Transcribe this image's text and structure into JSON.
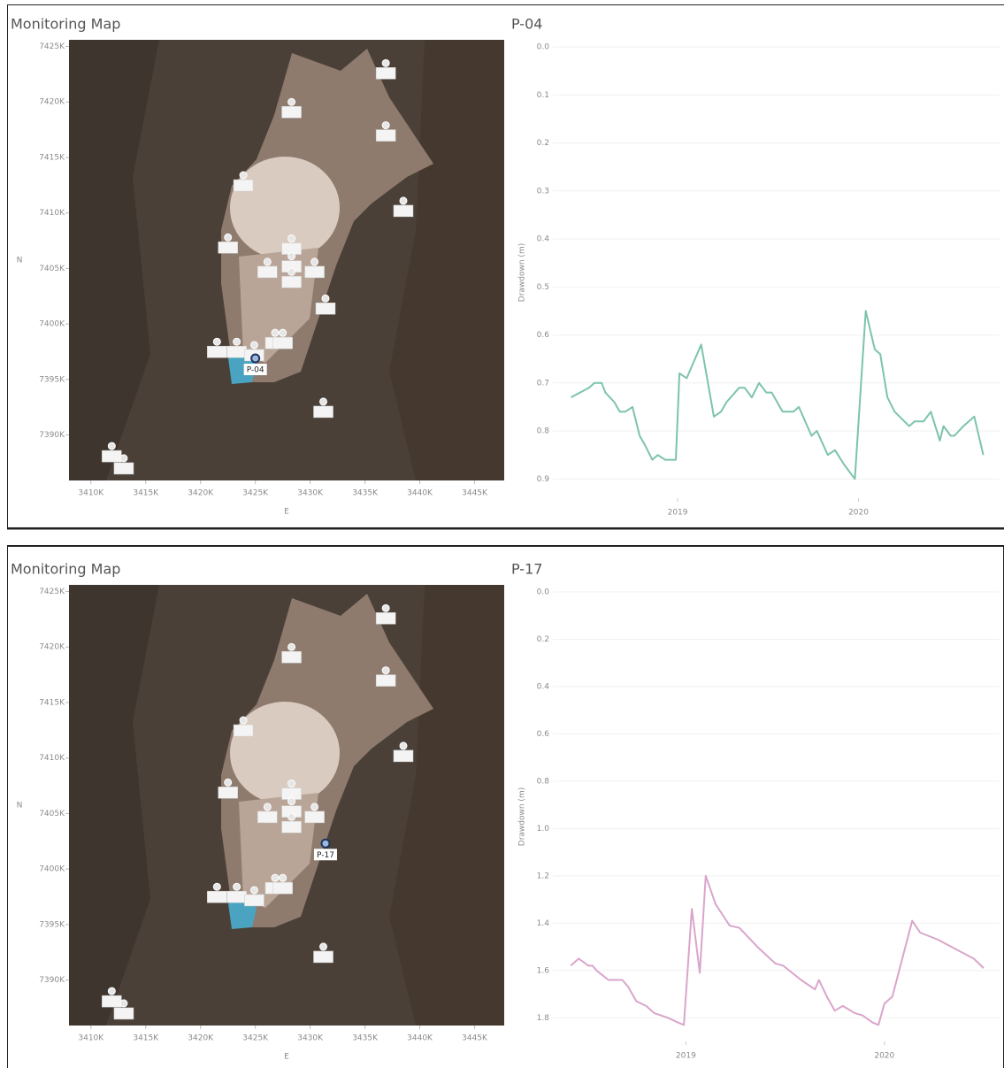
{
  "chart_data": [
    {
      "type": "scatter",
      "title": "Monitoring Map",
      "xlabel": "E",
      "ylabel": "N",
      "x": [
        3436.9,
        3428.3,
        3436.9,
        3423.9,
        3438.5,
        3422.5,
        3428.3,
        3428.3,
        3426.1,
        3430.4,
        3428.3,
        3431.4,
        3426.8,
        3427.5,
        3421.5,
        3423.3,
        3424.9,
        3431.2,
        3411.9,
        3413.0
      ],
      "y": [
        7423.5,
        7420.0,
        7417.9,
        7413.4,
        7411.1,
        7407.8,
        7407.7,
        7406.1,
        7405.6,
        7405.6,
        7404.7,
        7402.3,
        7399.2,
        7399.2,
        7398.4,
        7398.4,
        7398.1,
        7393.0,
        7389.0,
        7387.9
      ],
      "annotations": [
        {
          "text": "P-04",
          "x": 3425.0,
          "y": 7396.9
        }
      ],
      "xlim": [
        3408.0,
        3447.7
      ],
      "ylim": [
        7385.9,
        7425.6
      ],
      "xticks": [
        {
          "value": 3410,
          "label": "3410K"
        },
        {
          "value": 3415,
          "label": "3415K"
        },
        {
          "value": 3420,
          "label": "3420K"
        },
        {
          "value": 3425,
          "label": "3425K"
        },
        {
          "value": 3430,
          "label": "3430K"
        },
        {
          "value": 3435,
          "label": "3435K"
        },
        {
          "value": 3440,
          "label": "3440K"
        },
        {
          "value": 3445,
          "label": "3445K"
        }
      ],
      "yticks": [
        {
          "value": 7390,
          "label": "7390K"
        },
        {
          "value": 7395,
          "label": "7395K"
        },
        {
          "value": 7400,
          "label": "7400K"
        },
        {
          "value": 7405,
          "label": "7405K"
        },
        {
          "value": 7410,
          "label": "7410K"
        },
        {
          "value": 7415,
          "label": "7415K"
        },
        {
          "value": 7420,
          "label": "7420K"
        },
        {
          "value": 7425,
          "label": "7425K"
        }
      ]
    },
    {
      "type": "line",
      "title": "P-04",
      "ylabel": "Drawdown (m)",
      "color": "#7cc3ae",
      "y_inverted": true,
      "grid": true,
      "x": [
        2018.41,
        2018.46,
        2018.51,
        2018.54,
        2018.58,
        2018.6,
        2018.65,
        2018.68,
        2018.71,
        2018.75,
        2018.79,
        2018.82,
        2018.86,
        2018.89,
        2018.93,
        2018.99,
        2019.01,
        2019.05,
        2019.13,
        2019.2,
        2019.24,
        2019.27,
        2019.34,
        2019.37,
        2019.41,
        2019.45,
        2019.49,
        2019.52,
        2019.58,
        2019.64,
        2019.67,
        2019.74,
        2019.77,
        2019.83,
        2019.87,
        2019.92,
        2019.98,
        2020.04,
        2020.09,
        2020.12,
        2020.16,
        2020.2,
        2020.28,
        2020.31,
        2020.36,
        2020.4,
        2020.45,
        2020.47,
        2020.51,
        2020.53,
        2020.58,
        2020.64,
        2020.69
      ],
      "values": [
        0.73,
        0.72,
        0.71,
        0.7,
        0.7,
        0.72,
        0.74,
        0.76,
        0.76,
        0.75,
        0.81,
        0.83,
        0.86,
        0.85,
        0.86,
        0.86,
        0.68,
        0.69,
        0.62,
        0.77,
        0.76,
        0.74,
        0.71,
        0.71,
        0.73,
        0.7,
        0.72,
        0.72,
        0.76,
        0.76,
        0.75,
        0.81,
        0.8,
        0.85,
        0.84,
        0.87,
        0.9,
        0.55,
        0.63,
        0.64,
        0.73,
        0.76,
        0.79,
        0.78,
        0.78,
        0.76,
        0.82,
        0.79,
        0.81,
        0.81,
        0.79,
        0.77,
        0.85
      ],
      "xlim": [
        2018.31,
        2020.78
      ],
      "xticks": [
        2019,
        2020
      ],
      "ylim": [
        0,
        0.94
      ],
      "yticks": [
        {
          "value": 0,
          "label": "0.0"
        },
        0.1,
        0.2,
        0.3,
        0.4,
        0.5,
        0.6,
        0.7,
        0.8,
        0.9
      ]
    },
    {
      "type": "scatter",
      "title": "Monitoring Map",
      "xlabel": "E",
      "ylabel": "N",
      "x": [
        3436.9,
        3428.3,
        3436.9,
        3423.9,
        3438.5,
        3422.5,
        3428.3,
        3428.3,
        3426.1,
        3430.4,
        3428.3,
        3426.8,
        3427.5,
        3421.5,
        3423.3,
        3424.9,
        3431.2,
        3411.9,
        3413.0
      ],
      "y": [
        7423.5,
        7420.0,
        7417.9,
        7413.4,
        7411.1,
        7407.8,
        7407.7,
        7406.1,
        7405.6,
        7405.6,
        7404.7,
        7399.2,
        7399.2,
        7398.4,
        7398.4,
        7398.1,
        7393.0,
        7389.0,
        7387.9
      ],
      "annotations": [
        {
          "text": "P-17",
          "x": 3431.4,
          "y": 7402.3
        }
      ],
      "xlim": [
        3408.0,
        3447.7
      ],
      "ylim": [
        7385.9,
        7425.6
      ],
      "xticks": [
        {
          "value": 3410,
          "label": "3410K"
        },
        {
          "value": 3415,
          "label": "3415K"
        },
        {
          "value": 3420,
          "label": "3420K"
        },
        {
          "value": 3425,
          "label": "3425K"
        },
        {
          "value": 3430,
          "label": "3430K"
        },
        {
          "value": 3435,
          "label": "3435K"
        },
        {
          "value": 3440,
          "label": "3440K"
        },
        {
          "value": 3445,
          "label": "3445K"
        }
      ],
      "yticks": [
        {
          "value": 7390,
          "label": "7390K"
        },
        {
          "value": 7395,
          "label": "7395K"
        },
        {
          "value": 7400,
          "label": "7400K"
        },
        {
          "value": 7405,
          "label": "7405K"
        },
        {
          "value": 7410,
          "label": "7410K"
        },
        {
          "value": 7415,
          "label": "7415K"
        },
        {
          "value": 7420,
          "label": "7420K"
        },
        {
          "value": 7425,
          "label": "7425K"
        }
      ]
    },
    {
      "type": "line",
      "title": "P-17",
      "ylabel": "Drawdown (m)",
      "color": "#d9a5cb",
      "y_inverted": true,
      "grid": true,
      "x": [
        2018.42,
        2018.46,
        2018.51,
        2018.53,
        2018.55,
        2018.61,
        2018.68,
        2018.71,
        2018.75,
        2018.8,
        2018.84,
        2018.91,
        2018.96,
        2018.99,
        2019.03,
        2019.07,
        2019.1,
        2019.15,
        2019.22,
        2019.27,
        2019.36,
        2019.45,
        2019.49,
        2019.58,
        2019.65,
        2019.67,
        2019.71,
        2019.75,
        2019.79,
        2019.85,
        2019.89,
        2019.94,
        2019.97,
        2020.0,
        2020.04,
        2020.14,
        2020.18,
        2020.27,
        2020.36,
        2020.45,
        2020.5
      ],
      "values": [
        1.58,
        1.55,
        1.58,
        1.58,
        1.6,
        1.64,
        1.64,
        1.67,
        1.73,
        1.75,
        1.78,
        1.8,
        1.82,
        1.83,
        1.34,
        1.61,
        1.2,
        1.32,
        1.41,
        1.42,
        1.5,
        1.57,
        1.58,
        1.64,
        1.68,
        1.64,
        1.71,
        1.77,
        1.75,
        1.78,
        1.79,
        1.82,
        1.83,
        1.74,
        1.71,
        1.39,
        1.44,
        1.47,
        1.51,
        1.55,
        1.59
      ],
      "xlim": [
        2018.33,
        2020.58
      ],
      "xticks": [
        2019,
        2020
      ],
      "ylim": [
        0,
        1.9
      ],
      "yticks": [
        {
          "value": 0,
          "label": "0.0"
        },
        0.2,
        0.4,
        0.6,
        0.8,
        {
          "value": 1,
          "label": "1.0"
        },
        1.2,
        1.4,
        1.6,
        1.8
      ]
    }
  ]
}
